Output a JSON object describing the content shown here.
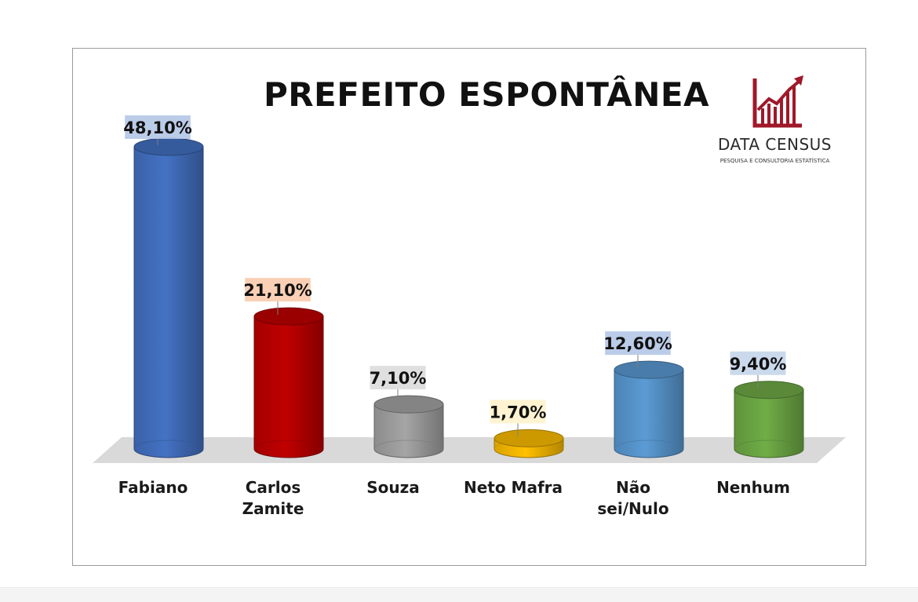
{
  "chart_data": {
    "type": "bar",
    "title": "PREFEITO ESPONTÂNEA",
    "categories": [
      "Fabiano",
      "Carlos\nZamite",
      "Souza",
      "Neto Mafra",
      "Não\nsei/Nulo",
      "Nenhum"
    ],
    "values": [
      48.1,
      21.1,
      7.1,
      1.7,
      12.6,
      9.4
    ],
    "data_labels": [
      "48,10%",
      "21,10%",
      "7,10%",
      "1,70%",
      "12,60%",
      "9,40%"
    ],
    "colors": [
      "#4472c4",
      "#c00000",
      "#a5a5a5",
      "#ffc000",
      "#5b9bd5",
      "#70ad47"
    ],
    "label_backgrounds": [
      "#b4c7e7",
      "#f8cbad",
      "#dbdbdb",
      "#fff2cc",
      "#b4c7e7",
      "#c5d5ea"
    ],
    "ylim": [
      0,
      50
    ],
    "grid": false,
    "legend": "none"
  },
  "logo": {
    "name": "DATA CENSUS",
    "tagline": "PESQUISA E CONSULTORIA ESTATÍSTICA",
    "color": "#a0182a"
  }
}
